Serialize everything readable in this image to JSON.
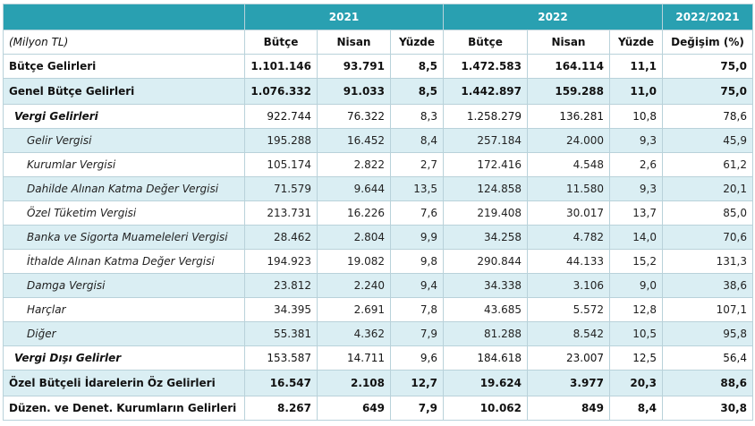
{
  "header": {
    "year_a": "2021",
    "year_b": "2022",
    "change": "2022/2021",
    "unit": "(Milyon TL)",
    "cols": [
      "Bütçe",
      "Nisan",
      "Yüzde",
      "Bütçe",
      "Nisan",
      "Yüzde",
      "Değişim (%)"
    ]
  },
  "rows": [
    {
      "label": "Bütçe Gelirleri",
      "v": [
        "1.101.146",
        "93.791",
        "8,5",
        "1.472.583",
        "164.114",
        "11,1",
        "75,0"
      ]
    },
    {
      "label": "Genel Bütçe Gelirleri",
      "v": [
        "1.076.332",
        "91.033",
        "8,5",
        "1.442.897",
        "159.288",
        "11,0",
        "75,0"
      ]
    },
    {
      "label": "Vergi Gelirleri",
      "v": [
        "922.744",
        "76.322",
        "8,3",
        "1.258.279",
        "136.281",
        "10,8",
        "78,6"
      ]
    },
    {
      "label": "Gelir Vergisi",
      "v": [
        "195.288",
        "16.452",
        "8,4",
        "257.184",
        "24.000",
        "9,3",
        "45,9"
      ]
    },
    {
      "label": "Kurumlar Vergisi",
      "v": [
        "105.174",
        "2.822",
        "2,7",
        "172.416",
        "4.548",
        "2,6",
        "61,2"
      ]
    },
    {
      "label": "Dahilde Alınan Katma Değer Vergisi",
      "v": [
        "71.579",
        "9.644",
        "13,5",
        "124.858",
        "11.580",
        "9,3",
        "20,1"
      ]
    },
    {
      "label": "Özel Tüketim Vergisi",
      "v": [
        "213.731",
        "16.226",
        "7,6",
        "219.408",
        "30.017",
        "13,7",
        "85,0"
      ]
    },
    {
      "label": "Banka ve Sigorta Muameleleri Vergisi",
      "v": [
        "28.462",
        "2.804",
        "9,9",
        "34.258",
        "4.782",
        "14,0",
        "70,6"
      ]
    },
    {
      "label": "İthalde Alınan Katma Değer Vergisi",
      "v": [
        "194.923",
        "19.082",
        "9,8",
        "290.844",
        "44.133",
        "15,2",
        "131,3"
      ]
    },
    {
      "label": "Damga Vergisi",
      "v": [
        "23.812",
        "2.240",
        "9,4",
        "34.338",
        "3.106",
        "9,0",
        "38,6"
      ]
    },
    {
      "label": "Harçlar",
      "v": [
        "34.395",
        "2.691",
        "7,8",
        "43.685",
        "5.572",
        "12,8",
        "107,1"
      ]
    },
    {
      "label": "Diğer",
      "v": [
        "55.381",
        "4.362",
        "7,9",
        "81.288",
        "8.542",
        "10,5",
        "95,8"
      ]
    },
    {
      "label": "Vergi Dışı Gelirler",
      "v": [
        "153.587",
        "14.711",
        "9,6",
        "184.618",
        "23.007",
        "12,5",
        "56,4"
      ]
    },
    {
      "label": "Özel Bütçeli İdarelerin Öz Gelirleri",
      "v": [
        "16.547",
        "2.108",
        "12,7",
        "19.624",
        "3.977",
        "20,3",
        "88,6"
      ]
    },
    {
      "label": "Düzen. ve Denet. Kurumların Gelirleri",
      "v": [
        "8.267",
        "649",
        "7,9",
        "10.062",
        "849",
        "8,4",
        "30,8"
      ]
    }
  ],
  "colors": {
    "header_bg": "#29a0b1",
    "band_bg": "#daeef3",
    "grid": "#b9d2da"
  }
}
